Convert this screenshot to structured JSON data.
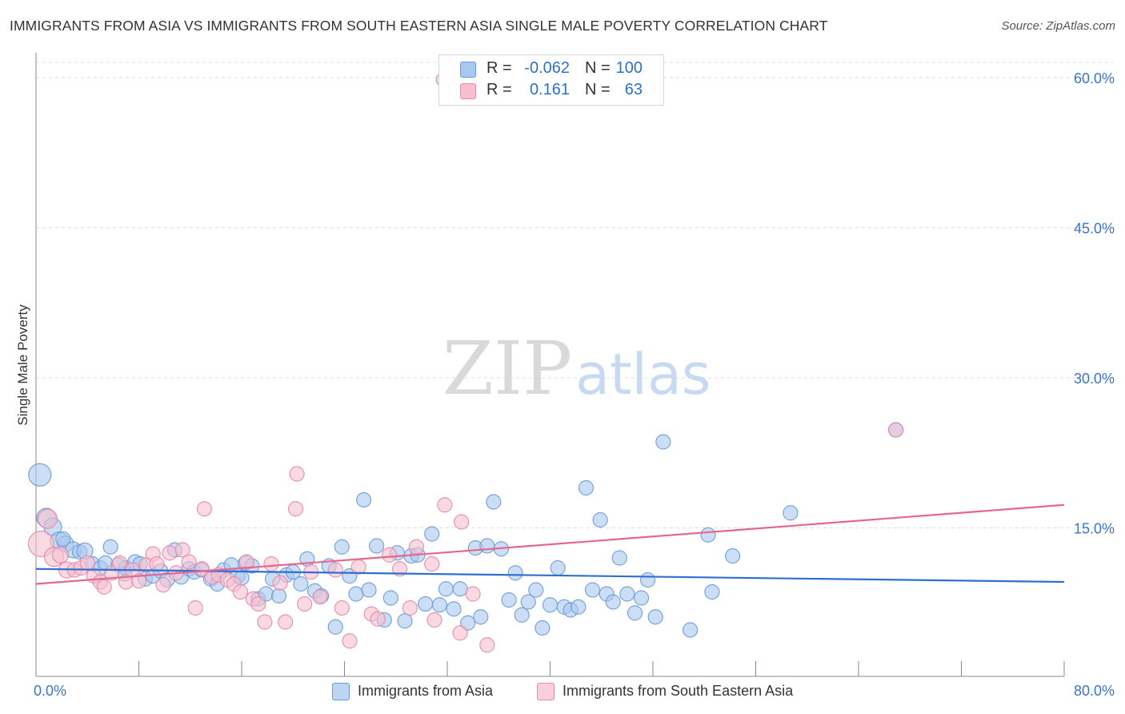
{
  "title": "IMMIGRANTS FROM ASIA VS IMMIGRANTS FROM SOUTH EASTERN ASIA SINGLE MALE POVERTY CORRELATION CHART",
  "source": "Source: ZipAtlas.com",
  "watermark": "ZIPatlas",
  "legend": {
    "rows": [
      {
        "r_label": "R =",
        "r_value": "-0.062",
        "n_label": "N =",
        "n_value": "100",
        "color": "#a8c8ef",
        "border": "#6a9bd8"
      },
      {
        "r_label": "R =",
        "r_value": "0.161",
        "n_label": "N =",
        "n_value": "63",
        "color": "#f7bfd0",
        "border": "#e58aa8"
      }
    ]
  },
  "bottom_legend": [
    {
      "label": "Immigrants from Asia",
      "color": "#bcd5f3",
      "border": "#6a9bd8"
    },
    {
      "label": "Immigrants from South Eastern Asia",
      "color": "#f9cfdc",
      "border": "#e58aa8"
    }
  ],
  "chart_data": {
    "type": "scatter",
    "title": "IMMIGRANTS FROM ASIA VS IMMIGRANTS FROM SOUTH EASTERN ASIA SINGLE MALE POVERTY CORRELATION CHART",
    "xlabel": "",
    "ylabel": "Single Male Poverty",
    "xlim": [
      0,
      80
    ],
    "ylim": [
      0,
      60
    ],
    "x_tick_labels": [
      "0.0%",
      "80.0%"
    ],
    "y_ticks": [
      15,
      30,
      45,
      60
    ],
    "y_tick_labels": [
      "15.0%",
      "30.0%",
      "45.0%",
      "60.0%"
    ],
    "grid": "horizontal dashed",
    "legend_position": "top-center",
    "series": [
      {
        "name": "Immigrants from Asia",
        "color": "#6a9bd8",
        "fill": "#a8c8ef",
        "trend": {
          "x": [
            0,
            80
          ],
          "y": [
            10.9,
            9.6
          ]
        },
        "points": [
          [
            0.3,
            20.3,
            14
          ],
          [
            0.8,
            16.0,
            12
          ],
          [
            1.3,
            15.1,
            11
          ],
          [
            1.8,
            13.7,
            11
          ],
          [
            2.3,
            13.4,
            10
          ],
          [
            2.9,
            12.8,
            10
          ],
          [
            3.4,
            12.6,
            9
          ],
          [
            3.8,
            12.7,
            10
          ],
          [
            4.4,
            11.4,
            9
          ],
          [
            5.0,
            11.0,
            9
          ],
          [
            5.4,
            11.5,
            9
          ],
          [
            5.8,
            13.1,
            9
          ],
          [
            6.4,
            11.3,
            9
          ],
          [
            7.0,
            11.0,
            9
          ],
          [
            7.7,
            11.6,
            9
          ],
          [
            8.1,
            11.4,
            9
          ],
          [
            8.5,
            9.9,
            9
          ],
          [
            9.1,
            10.2,
            9
          ],
          [
            9.7,
            10.7,
            9
          ],
          [
            10.2,
            9.8,
            9
          ],
          [
            10.8,
            12.8,
            9
          ],
          [
            11.3,
            10.1,
            9
          ],
          [
            11.9,
            10.9,
            9
          ],
          [
            12.3,
            10.6,
            9
          ],
          [
            12.9,
            10.8,
            9
          ],
          [
            13.6,
            9.9,
            9
          ],
          [
            14.1,
            9.4,
            9
          ],
          [
            14.6,
            10.8,
            9
          ],
          [
            15.2,
            11.3,
            9
          ],
          [
            15.7,
            10.2,
            9
          ],
          [
            16.3,
            11.5,
            9
          ],
          [
            16.8,
            11.2,
            9
          ],
          [
            17.3,
            7.9,
            9
          ],
          [
            17.9,
            8.4,
            9
          ],
          [
            18.4,
            9.9,
            9
          ],
          [
            18.9,
            8.2,
            9
          ],
          [
            19.5,
            10.3,
            9
          ],
          [
            20.0,
            10.6,
            9
          ],
          [
            20.6,
            9.4,
            9
          ],
          [
            21.1,
            11.9,
            9
          ],
          [
            21.7,
            8.7,
            9
          ],
          [
            22.2,
            8.2,
            9
          ],
          [
            22.8,
            11.2,
            9
          ],
          [
            23.3,
            5.1,
            9
          ],
          [
            23.8,
            13.1,
            9
          ],
          [
            24.4,
            10.2,
            9
          ],
          [
            24.9,
            8.4,
            9
          ],
          [
            25.5,
            17.8,
            9
          ],
          [
            25.9,
            8.8,
            9
          ],
          [
            26.5,
            13.2,
            9
          ],
          [
            27.1,
            5.8,
            9
          ],
          [
            27.6,
            8.0,
            9
          ],
          [
            28.1,
            12.5,
            9
          ],
          [
            28.7,
            5.7,
            9
          ],
          [
            29.2,
            12.2,
            9
          ],
          [
            29.7,
            12.3,
            9
          ],
          [
            30.3,
            7.4,
            9
          ],
          [
            30.8,
            14.4,
            9
          ],
          [
            31.4,
            7.3,
            9
          ],
          [
            31.9,
            8.9,
            9
          ],
          [
            32.5,
            6.9,
            9
          ],
          [
            33.0,
            8.9,
            9
          ],
          [
            33.6,
            5.5,
            9
          ],
          [
            34.2,
            13.0,
            9
          ],
          [
            34.6,
            6.1,
            9
          ],
          [
            35.1,
            13.2,
            9
          ],
          [
            35.6,
            17.6,
            9
          ],
          [
            36.2,
            12.9,
            9
          ],
          [
            36.8,
            7.8,
            9
          ],
          [
            37.3,
            10.5,
            9
          ],
          [
            37.8,
            6.3,
            9
          ],
          [
            38.3,
            7.6,
            9
          ],
          [
            38.9,
            8.8,
            9
          ],
          [
            39.4,
            5.0,
            9
          ],
          [
            40.0,
            7.3,
            9
          ],
          [
            40.6,
            11.0,
            9
          ],
          [
            41.1,
            7.1,
            9
          ],
          [
            41.6,
            6.8,
            9
          ],
          [
            42.2,
            7.1,
            9
          ],
          [
            42.8,
            19.0,
            9
          ],
          [
            43.3,
            8.8,
            9
          ],
          [
            43.9,
            15.8,
            9
          ],
          [
            44.4,
            8.4,
            9
          ],
          [
            44.9,
            7.6,
            9
          ],
          [
            45.4,
            12.0,
            9
          ],
          [
            46.0,
            8.4,
            9
          ],
          [
            46.6,
            6.5,
            9
          ],
          [
            47.1,
            8.0,
            9
          ],
          [
            47.6,
            9.8,
            9
          ],
          [
            48.2,
            6.1,
            9
          ],
          [
            48.8,
            23.6,
            9
          ],
          [
            50.9,
            4.8,
            9
          ],
          [
            52.3,
            14.3,
            9
          ],
          [
            52.6,
            8.6,
            9
          ],
          [
            54.2,
            12.2,
            9
          ],
          [
            58.7,
            16.5,
            9
          ],
          [
            66.9,
            24.8,
            9
          ],
          [
            2.1,
            13.9,
            9
          ],
          [
            6.9,
            10.4,
            9
          ],
          [
            16.0,
            10.0,
            9
          ]
        ]
      },
      {
        "name": "Immigrants from South Eastern Asia",
        "color": "#e58aa8",
        "fill": "#f7bfd0",
        "trend": {
          "x": [
            0,
            80
          ],
          "y": [
            9.4,
            17.3
          ]
        },
        "points": [
          [
            0.4,
            13.4,
            16
          ],
          [
            0.9,
            15.9,
            12
          ],
          [
            1.4,
            12.1,
            12
          ],
          [
            1.9,
            12.3,
            10
          ],
          [
            2.4,
            10.8,
            10
          ],
          [
            3.0,
            10.8,
            9
          ],
          [
            3.5,
            11.0,
            9
          ],
          [
            4.0,
            11.5,
            9
          ],
          [
            4.5,
            10.2,
            9
          ],
          [
            5.0,
            9.6,
            9
          ],
          [
            5.3,
            9.1,
            9
          ],
          [
            5.9,
            10.5,
            9
          ],
          [
            6.5,
            11.5,
            9
          ],
          [
            7.0,
            9.6,
            9
          ],
          [
            7.5,
            10.8,
            9
          ],
          [
            8.0,
            9.7,
            9
          ],
          [
            8.6,
            11.3,
            9
          ],
          [
            9.1,
            12.4,
            9
          ],
          [
            9.4,
            11.4,
            9
          ],
          [
            9.9,
            9.3,
            9
          ],
          [
            10.4,
            12.5,
            9
          ],
          [
            10.9,
            10.5,
            9
          ],
          [
            11.4,
            12.8,
            9
          ],
          [
            11.9,
            11.6,
            9
          ],
          [
            12.4,
            7.0,
            9
          ],
          [
            12.9,
            10.9,
            9
          ],
          [
            13.1,
            16.9,
            9
          ],
          [
            13.7,
            10.1,
            9
          ],
          [
            14.2,
            10.3,
            9
          ],
          [
            14.9,
            9.8,
            9
          ],
          [
            15.4,
            9.4,
            9
          ],
          [
            15.9,
            8.6,
            9
          ],
          [
            16.4,
            11.6,
            9
          ],
          [
            16.9,
            7.9,
            9
          ],
          [
            17.3,
            7.4,
            9
          ],
          [
            17.8,
            5.6,
            9
          ],
          [
            18.3,
            11.4,
            9
          ],
          [
            19.0,
            9.5,
            9
          ],
          [
            19.4,
            5.6,
            9
          ],
          [
            20.2,
            16.9,
            9
          ],
          [
            20.3,
            20.4,
            9
          ],
          [
            20.9,
            7.4,
            9
          ],
          [
            21.4,
            10.6,
            9
          ],
          [
            22.1,
            8.1,
            9
          ],
          [
            23.3,
            10.8,
            9
          ],
          [
            23.8,
            7.0,
            9
          ],
          [
            24.4,
            3.7,
            9
          ],
          [
            25.1,
            11.1,
            9
          ],
          [
            26.1,
            6.4,
            9
          ],
          [
            26.6,
            5.9,
            9
          ],
          [
            27.5,
            12.3,
            9
          ],
          [
            28.3,
            10.9,
            9
          ],
          [
            29.1,
            7.0,
            9
          ],
          [
            29.6,
            13.1,
            9
          ],
          [
            30.8,
            11.4,
            9
          ],
          [
            31.0,
            5.8,
            9
          ],
          [
            31.8,
            17.3,
            9
          ],
          [
            33.0,
            4.5,
            9
          ],
          [
            33.1,
            15.6,
            9
          ],
          [
            34.0,
            8.4,
            9
          ],
          [
            35.1,
            3.3,
            9
          ],
          [
            31.7,
            59.8,
            9
          ],
          [
            66.9,
            24.8,
            9
          ]
        ]
      }
    ]
  }
}
